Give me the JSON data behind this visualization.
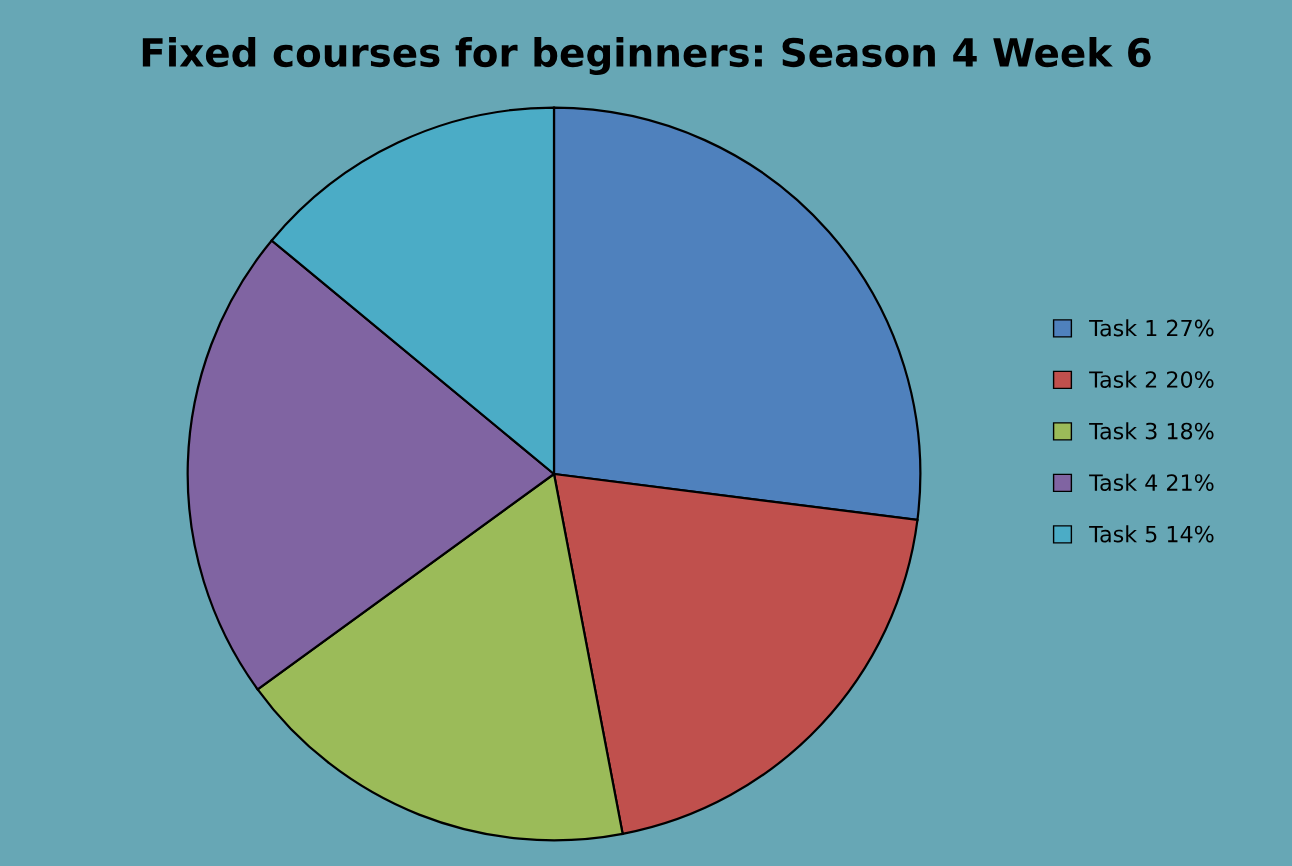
{
  "chart_data": {
    "type": "pie",
    "title": "Fixed courses for beginners: Season 4 Week 6",
    "categories": [
      "Task 1 27%",
      "Task 2 20%",
      "Task 3 18%",
      "Task 4 21%",
      "Task 5 14%"
    ],
    "values": [
      27,
      20,
      18,
      21,
      14
    ],
    "colors": [
      "#4f81bd",
      "#c0504d",
      "#9bbb59",
      "#8064a2",
      "#4bacc6"
    ],
    "legend": "right"
  }
}
